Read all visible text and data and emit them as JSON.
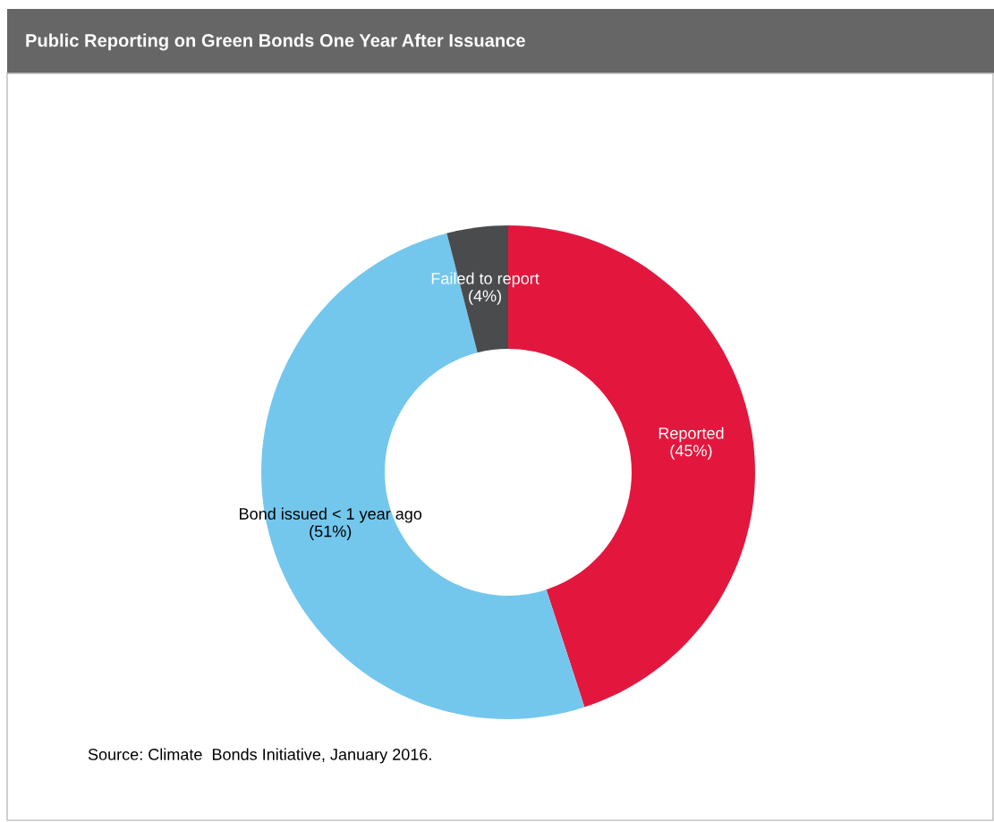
{
  "chart_data": {
    "type": "donut",
    "title": "Public Reporting on Green Bonds One Year After Issuance",
    "categories": [
      "Reported",
      "Bond issued < 1 year ago",
      "Failed to report"
    ],
    "values": [
      45,
      51,
      4
    ],
    "colors": [
      "#e3173e",
      "#74c7ec",
      "#4a4b4d"
    ],
    "value_labels": [
      "(45%)",
      "(51%)",
      "(4%)"
    ],
    "legend": false,
    "annotations": [
      "Source: Climate  Bonds Initiative, January 2016."
    ]
  }
}
